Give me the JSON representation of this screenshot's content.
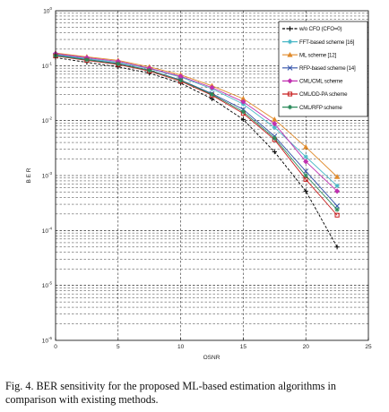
{
  "figure": {
    "caption_line1": "Fig. 4.  BER sensitivity for the proposed ML-based estimation algorithms in",
    "caption_line2": "comparison with existing methods."
  },
  "chart_data": {
    "type": "line",
    "xlabel": "OSNR",
    "ylabel": "B E R",
    "xlim": [
      0,
      25
    ],
    "ylim": [
      1e-06,
      1
    ],
    "yscale": "log",
    "xticks": [
      0,
      5,
      10,
      15,
      20,
      25
    ],
    "yticks": [
      {
        "value": 1e-06,
        "base": "10",
        "exp": "-6"
      },
      {
        "value": 1e-05,
        "base": "10",
        "exp": "-5"
      },
      {
        "value": 0.0001,
        "base": "10",
        "exp": "-4"
      },
      {
        "value": 0.001,
        "base": "10",
        "exp": "-3"
      },
      {
        "value": 0.01,
        "base": "10",
        "exp": "-2"
      },
      {
        "value": 0.1,
        "base": "10",
        "exp": "-1"
      },
      {
        "value": 1,
        "base": "10",
        "exp": "0"
      }
    ],
    "grid": true,
    "legend_position": "top-right",
    "x": [
      0,
      2.5,
      5,
      7.5,
      10,
      12.5,
      15,
      17.5,
      20,
      22.5
    ],
    "series": [
      {
        "name": "w/o CFO (CFO=0)",
        "color": "#000000",
        "marker": "plus",
        "dashed": true,
        "values": [
          0.14,
          0.115,
          0.095,
          0.073,
          0.048,
          0.025,
          0.0105,
          0.0027,
          0.00052,
          5e-05
        ]
      },
      {
        "name": "FFT-based scheme [16]",
        "color": "#4ab8c8",
        "marker": "star",
        "values": [
          0.16,
          0.135,
          0.115,
          0.088,
          0.062,
          0.038,
          0.02,
          0.0075,
          0.0022,
          0.00065
        ]
      },
      {
        "name": "ML scheme [12]",
        "color": "#e08a2a",
        "marker": "triangle",
        "values": [
          0.17,
          0.145,
          0.125,
          0.095,
          0.068,
          0.043,
          0.025,
          0.0105,
          0.0033,
          0.00095
        ]
      },
      {
        "name": "RFP-based scheme [14]",
        "color": "#3050a8",
        "marker": "x",
        "values": [
          0.155,
          0.13,
          0.11,
          0.083,
          0.055,
          0.031,
          0.016,
          0.0052,
          0.0012,
          0.00028
        ]
      },
      {
        "name": "CML/CML scheme",
        "color": "#c030b0",
        "marker": "diamond",
        "values": [
          0.165,
          0.14,
          0.12,
          0.09,
          0.064,
          0.04,
          0.022,
          0.0088,
          0.0018,
          0.00052
        ]
      },
      {
        "name": "CML/DD-PA scheme",
        "color": "#c81e1e",
        "marker": "square",
        "values": [
          0.15,
          0.125,
          0.105,
          0.08,
          0.052,
          0.029,
          0.0135,
          0.0045,
          0.00085,
          0.00019
        ]
      },
      {
        "name": "CML/RFP scheme",
        "color": "#2a8a5a",
        "marker": "star2",
        "values": [
          0.152,
          0.128,
          0.108,
          0.082,
          0.054,
          0.03,
          0.0145,
          0.0048,
          0.001,
          0.00024
        ]
      }
    ]
  }
}
